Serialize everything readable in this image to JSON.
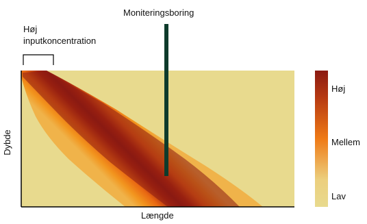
{
  "labels": {
    "well": "Moniteringsboring",
    "input_line1": "Høj",
    "input_line2": "inputkoncentration",
    "y_axis": "Dybde",
    "x_axis": "Længde"
  },
  "legend": {
    "high": "Høj",
    "medium": "Mellem",
    "low": "Lav"
  },
  "colors": {
    "background": "#e8da8e",
    "plume_core": "#8b1a12",
    "plume_mid": "#e86a10",
    "plume_edge": "#f2a23a",
    "well": "#0e3b2c",
    "legend_low": "#e8da8e",
    "legend_mid": "#ef7a16",
    "legend_high": "#8b1a12"
  }
}
